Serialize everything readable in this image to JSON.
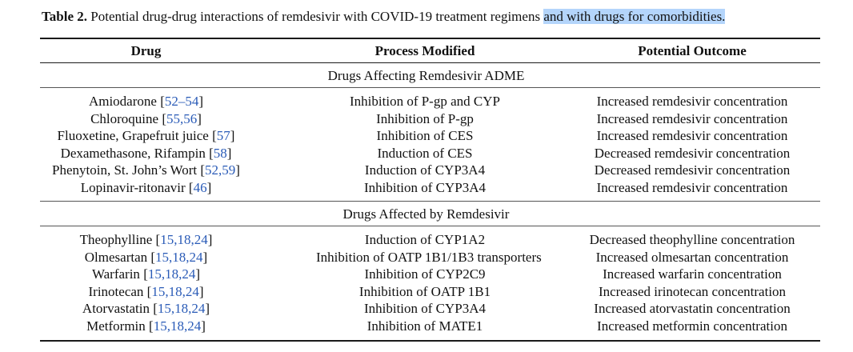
{
  "caption": {
    "label": "Table 2.",
    "text": " Potential drug-drug interactions of remdesivir with COVID-19 treatment regimens ",
    "highlighted": "and with drugs for comorbidities."
  },
  "headers": [
    "Drug",
    "Process Modified",
    "Potential Outcome"
  ],
  "sections": [
    {
      "title": "Drugs Affecting Remdesivir ADME",
      "rows": [
        {
          "drug": "Amiodarone",
          "refs": "52–54",
          "process": "Inhibition of P-gp and CYP",
          "outcome": "Increased remdesivir concentration"
        },
        {
          "drug": "Chloroquine",
          "refs": "55,56",
          "process": "Inhibition of P-gp",
          "outcome": "Increased remdesivir concentration"
        },
        {
          "drug": "Fluoxetine, Grapefruit juice",
          "refs": "57",
          "process": "Inhibition of CES",
          "outcome": "Increased remdesivir concentration"
        },
        {
          "drug": "Dexamethasone, Rifampin",
          "refs": "58",
          "process": "Induction of CES",
          "outcome": "Decreased remdesivir concentration"
        },
        {
          "drug": "Phenytoin, St. John’s Wort",
          "refs": "52,59",
          "process": "Induction of CYP3A4",
          "outcome": "Decreased remdesivir concentration"
        },
        {
          "drug": "Lopinavir-ritonavir",
          "refs": "46",
          "process": "Inhibition of CYP3A4",
          "outcome": "Increased remdesivir concentration"
        }
      ]
    },
    {
      "title": "Drugs Affected by Remdesivir",
      "rows": [
        {
          "drug": "Theophylline",
          "refs": "15,18,24",
          "process": "Induction of CYP1A2",
          "outcome": "Decreased theophylline concentration"
        },
        {
          "drug": "Olmesartan",
          "refs": "15,18,24",
          "process": "Inhibition of OATP 1B1/1B3 transporters",
          "outcome": "Increased olmesartan concentration"
        },
        {
          "drug": "Warfarin",
          "refs": "15,18,24",
          "process": "Inhibition of CYP2C9",
          "outcome": "Increased warfarin concentration"
        },
        {
          "drug": "Irinotecan",
          "refs": "15,18,24",
          "process": "Inhibition of OATP 1B1",
          "outcome": "Increased irinotecan concentration"
        },
        {
          "drug": "Atorvastatin",
          "refs": "15,18,24",
          "process": "Inhibition of CYP3A4",
          "outcome": "Increased atorvastatin concentration"
        },
        {
          "drug": "Metformin",
          "refs": "15,18,24",
          "process": "Inhibition of MATE1",
          "outcome": "Increased metformin concentration"
        }
      ]
    }
  ]
}
